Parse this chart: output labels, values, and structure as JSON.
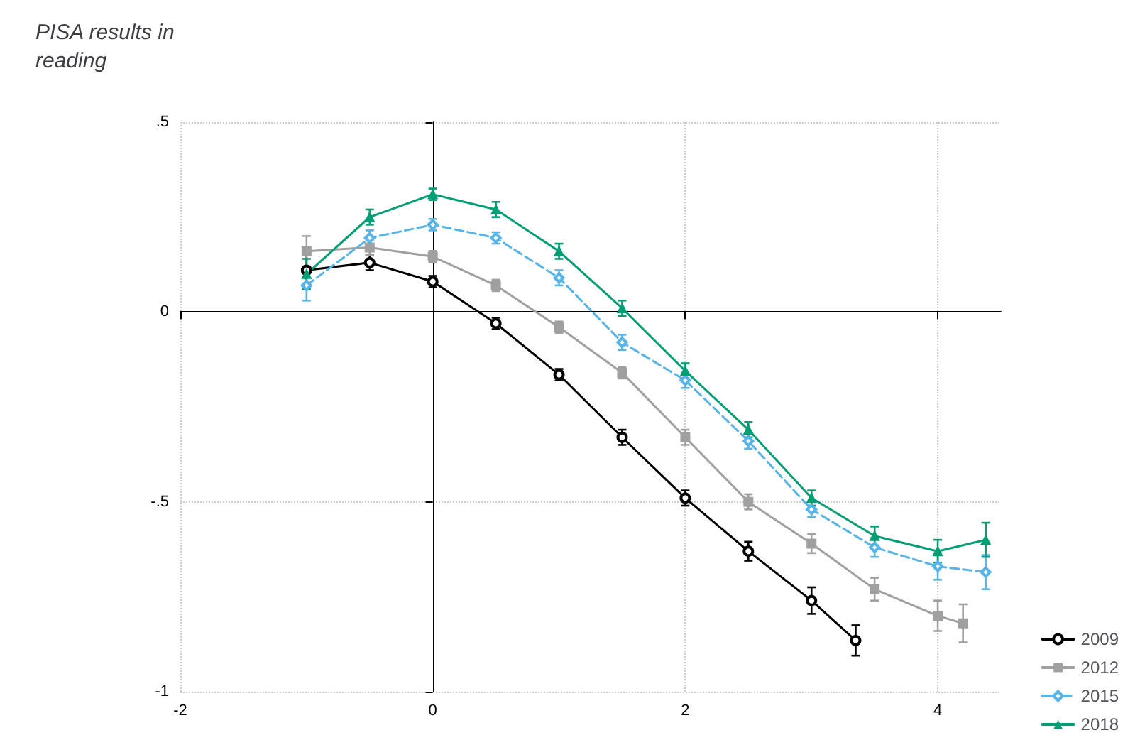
{
  "chart_data": {
    "type": "line",
    "title": "PISA results in reading",
    "xlim": [
      -2,
      4.5
    ],
    "xticks": [
      -2,
      0,
      2,
      4
    ],
    "ylim": [
      -1,
      0.5
    ],
    "yticks": [
      {
        "value": -1,
        "label": "-1"
      },
      {
        "value": -0.5,
        "label": "-.5"
      },
      {
        "value": 0,
        "label": "0"
      },
      {
        "value": 0.5,
        "label": ".5"
      }
    ],
    "grid": true,
    "legend": "right",
    "series": [
      {
        "name": "2009",
        "color": "#000000",
        "marker": "circle",
        "line_style": "solid",
        "x": [
          -1,
          -0.5,
          0,
          0.5,
          1,
          1.5,
          2,
          2.5,
          3,
          3.35
        ],
        "values": [
          0.11,
          0.13,
          0.08,
          -0.03,
          -0.165,
          -0.33,
          -0.49,
          -0.63,
          -0.76,
          -0.865
        ],
        "errors": [
          0.04,
          0.02,
          0.015,
          0.015,
          0.015,
          0.02,
          0.02,
          0.025,
          0.035,
          0.04
        ]
      },
      {
        "name": "2012",
        "color": "#a0a0a0",
        "marker": "square",
        "line_style": "solid",
        "x": [
          -1,
          -0.5,
          0,
          0.5,
          1,
          1.5,
          2,
          2.5,
          3,
          3.5,
          4,
          4.2
        ],
        "values": [
          0.16,
          0.17,
          0.146,
          0.07,
          -0.04,
          -0.16,
          -0.33,
          -0.5,
          -0.61,
          -0.73,
          -0.8,
          -0.82
        ],
        "errors": [
          0.04,
          0.02,
          0.015,
          0.015,
          0.015,
          0.015,
          0.02,
          0.02,
          0.025,
          0.03,
          0.04,
          0.05
        ]
      },
      {
        "name": "2015",
        "color": "#56b4e9",
        "marker": "diamond",
        "line_style": "dashed",
        "x": [
          -1,
          -0.5,
          0,
          0.5,
          1,
          1.5,
          2,
          2.5,
          3,
          3.5,
          4,
          4.38
        ],
        "values": [
          0.07,
          0.195,
          0.23,
          0.195,
          0.09,
          -0.08,
          -0.18,
          -0.34,
          -0.52,
          -0.62,
          -0.67,
          -0.685
        ],
        "errors": [
          0.04,
          0.02,
          0.015,
          0.015,
          0.02,
          0.02,
          0.02,
          0.02,
          0.02,
          0.025,
          0.035,
          0.045
        ]
      },
      {
        "name": "2018",
        "color": "#009e73",
        "marker": "triangle",
        "line_style": "solid",
        "x": [
          -1,
          -0.5,
          0,
          0.5,
          1,
          1.5,
          2,
          2.5,
          3,
          3.5,
          4,
          4.38
        ],
        "values": [
          0.1,
          0.25,
          0.31,
          0.27,
          0.16,
          0.01,
          -0.155,
          -0.31,
          -0.49,
          -0.59,
          -0.63,
          -0.6
        ],
        "errors": [
          0.04,
          0.02,
          0.015,
          0.02,
          0.02,
          0.02,
          0.02,
          0.02,
          0.02,
          0.025,
          0.03,
          0.045
        ]
      }
    ]
  }
}
